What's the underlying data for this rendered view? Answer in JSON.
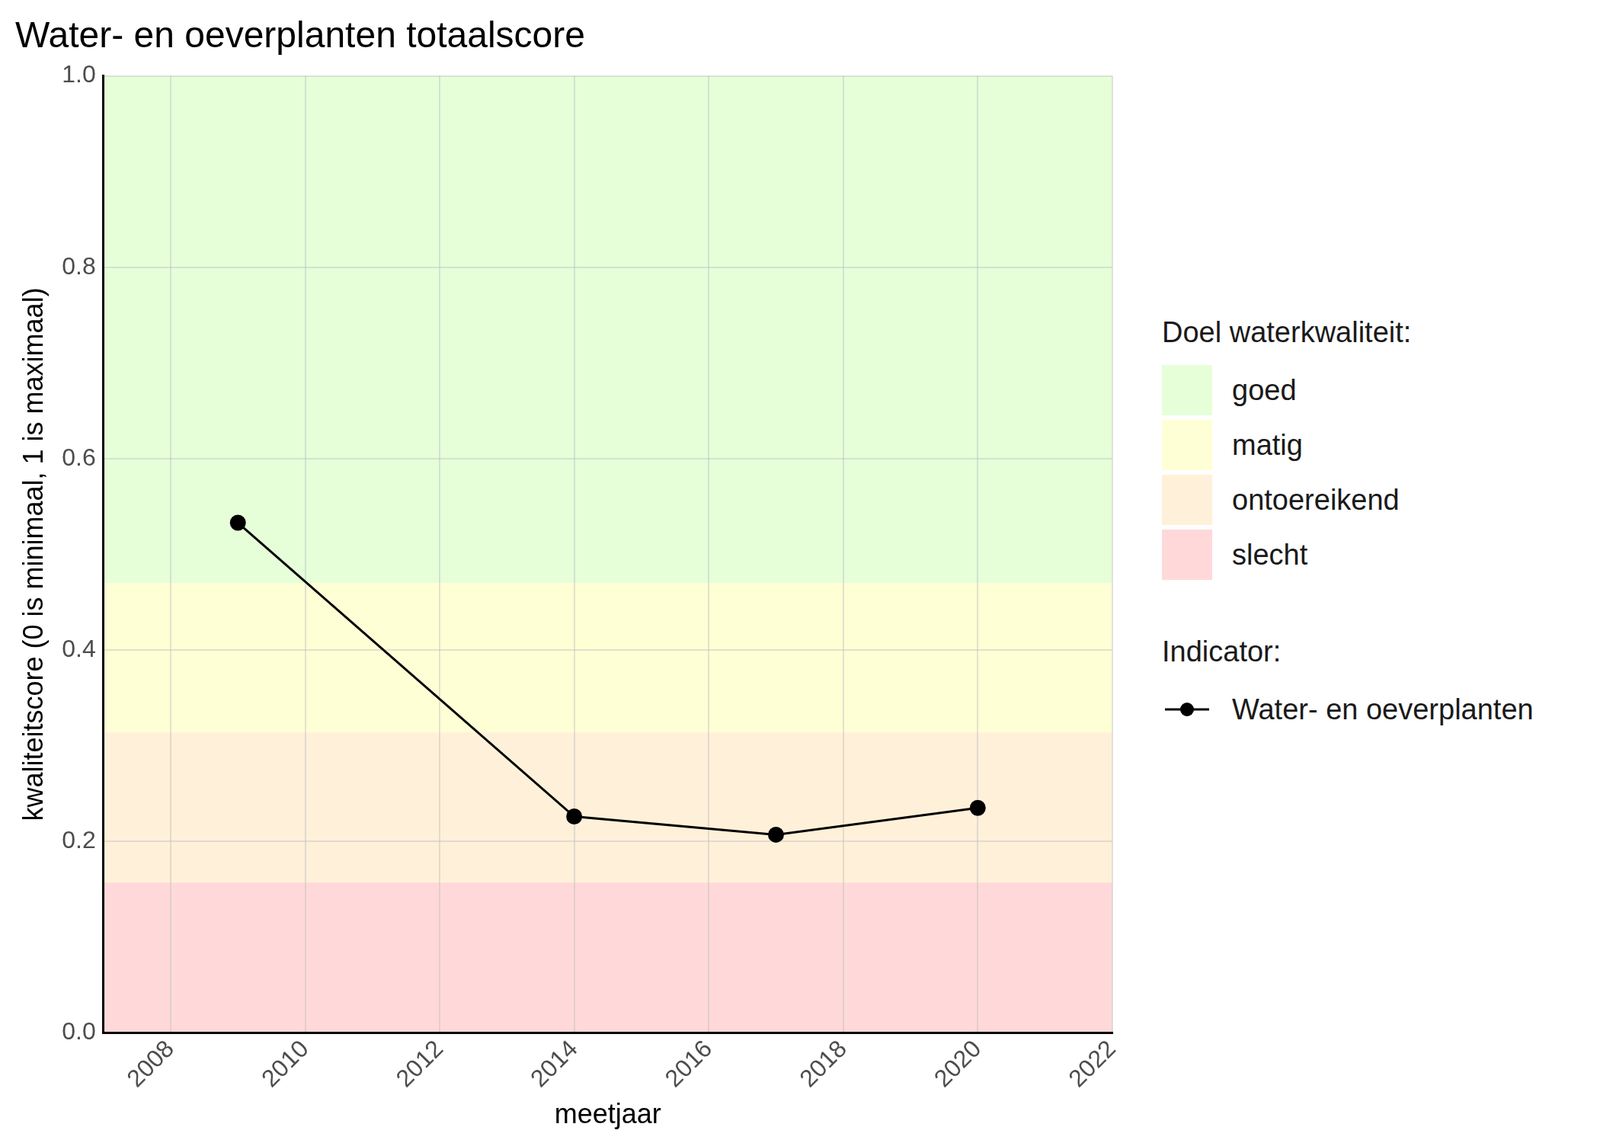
{
  "chart_data": {
    "type": "line",
    "title": "Water- en oeverplanten totaalscore",
    "x_label": "meetjaar",
    "y_label": "kwaliteitscore (0 is minimaal, 1 is maximaal)",
    "x": [
      2009,
      2014,
      2017,
      2020
    ],
    "series": [
      {
        "name": "Water- en oeverplanten",
        "color": "#000000",
        "marker": "circle",
        "line_style": "solid",
        "values": [
          0.533,
          0.226,
          0.207,
          0.235
        ]
      }
    ],
    "xlim": [
      2007,
      2022
    ],
    "xticks": [
      2008,
      2010,
      2012,
      2014,
      2016,
      2018,
      2020,
      2022
    ],
    "ylim": [
      0,
      1
    ],
    "yticks": [
      {
        "value": 0,
        "label": "0.0"
      },
      0.2,
      0.4,
      0.6,
      0.8,
      {
        "value": 1,
        "label": "1.0"
      }
    ],
    "grid": true,
    "legend": "right",
    "legend_title": "Indicator:",
    "bands": {
      "title": "Doel waterkwaliteit:",
      "items": [
        {
          "name": "goed",
          "from": 0.47,
          "to": 1,
          "color": "#e6ffd9"
        },
        {
          "name": "matig",
          "from": 0.314,
          "to": 0.47,
          "color": "#ffffd6"
        },
        {
          "name": "ontoereikend",
          "from": 0.157,
          "to": 0.314,
          "color": "#fff1d9"
        },
        {
          "name": "slecht",
          "from": 0,
          "to": 0.157,
          "color": "#ffd9d9"
        }
      ]
    }
  }
}
